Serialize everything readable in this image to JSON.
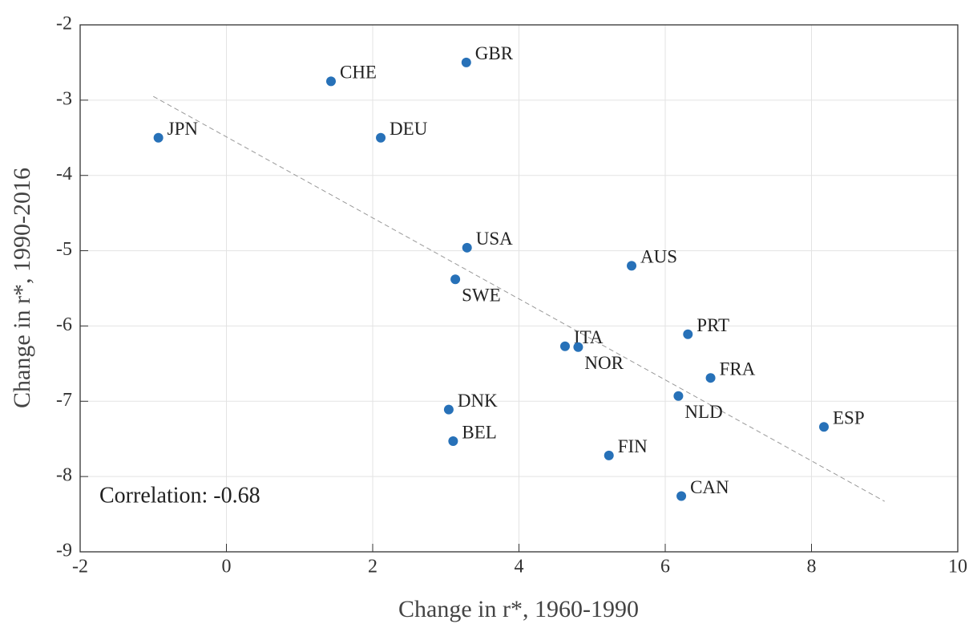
{
  "chart_data": {
    "type": "scatter",
    "xlabel": "Change in r*, 1960-1990",
    "ylabel": "Change in r*, 1990-2016",
    "annotation": "Correlation: -0.68",
    "labels": [
      "JPN",
      "CHE",
      "GBR",
      "DEU",
      "USA",
      "SWE",
      "AUS",
      "ITA",
      "NOR",
      "PRT",
      "FRA",
      "NLD",
      "ESP",
      "DNK",
      "BEL",
      "FIN",
      "CAN"
    ],
    "x": [
      -0.93,
      1.43,
      3.28,
      2.11,
      3.29,
      3.13,
      5.54,
      4.63,
      4.81,
      6.31,
      6.62,
      6.18,
      8.17,
      3.04,
      3.1,
      5.23,
      6.22
    ],
    "y": [
      -3.5,
      -2.75,
      -2.5,
      -3.5,
      -4.96,
      -5.38,
      -5.2,
      -6.27,
      -6.28,
      -6.11,
      -6.69,
      -6.93,
      -7.34,
      -7.11,
      -7.53,
      -7.72,
      -8.26
    ],
    "color": "#2771b8",
    "trendline": {
      "x": [
        -1,
        9
      ],
      "y": [
        -2.95,
        -8.33
      ],
      "color": "#999999"
    },
    "xlim": [
      -2,
      10
    ],
    "xticks": [
      -2,
      0,
      2,
      4,
      6,
      8,
      10
    ],
    "ylim": [
      -9,
      -2
    ],
    "yticks": [
      -9,
      -8,
      -7,
      -6,
      -5,
      -4,
      -3,
      -2
    ],
    "grid": true
  }
}
